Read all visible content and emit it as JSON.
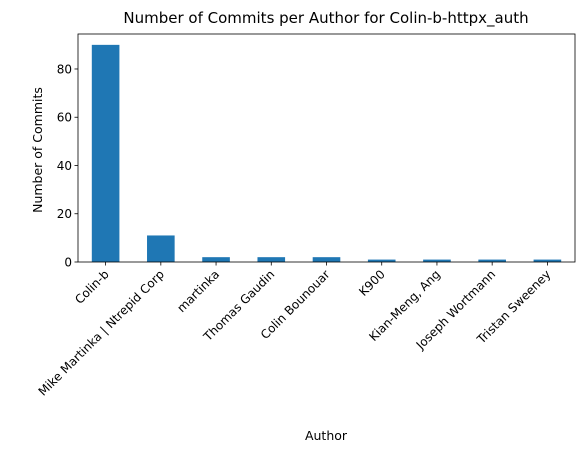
{
  "chart_data": {
    "type": "bar",
    "title": "Number of Commits per Author for Colin-b-httpx_auth",
    "xlabel": "Author",
    "ylabel": "Number of Commits",
    "categories": [
      "Colin-b",
      "Mike Martinka | Ntrepid Corp",
      "martinka",
      "Thomas Gaudin",
      "Colin Bounouar",
      "K900",
      "Kian-Meng, Ang",
      "Joseph Wortmann",
      "Tristan Sweeney"
    ],
    "values": [
      90,
      11,
      2,
      2,
      2,
      1,
      1,
      1,
      1
    ],
    "yticks": [
      0,
      20,
      40,
      60,
      80
    ],
    "ylim": [
      0,
      94.5
    ],
    "grid": false,
    "legend": false,
    "bar_color": "#1f77b4"
  }
}
